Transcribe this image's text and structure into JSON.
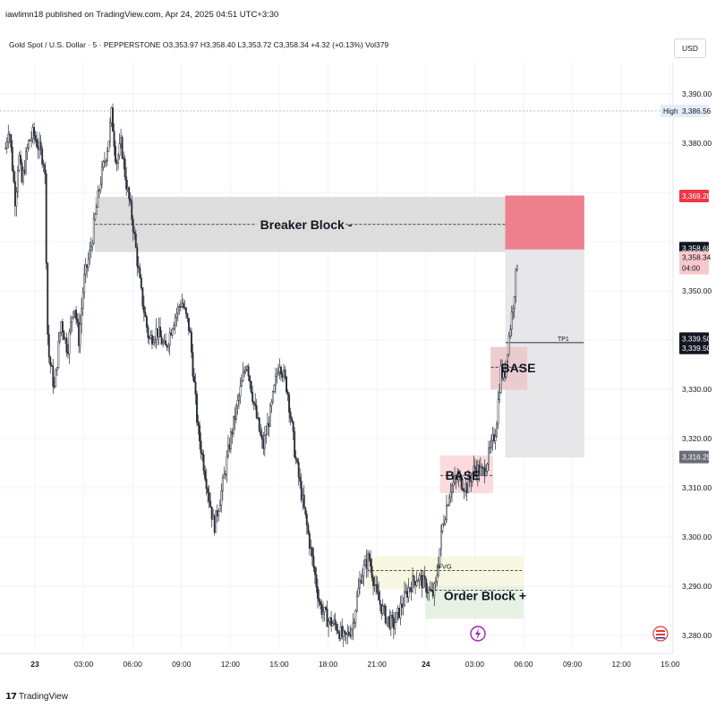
{
  "publish_line": "iawlimn18 published on TradingView.com, Apr 24, 2025 04:51 UTC+3:30",
  "symbol_line": "Gold Spot / U.S. Dollar · 5 · PEPPERSTONE  O3,353.97  H3,358.40  L3,353.72  C3,358.34  +4.32 (+0.13%)  Vol379",
  "currency_button": "USD",
  "brand": {
    "logo_text": "TradingView"
  },
  "chart_data": {
    "type": "candlestick",
    "symbol": "Gold Spot / U.S. Dollar",
    "interval": "5",
    "exchange": "PEPPERSTONE",
    "ohlc": {
      "open": 3353.97,
      "high": 3358.4,
      "low": 3353.72,
      "close": 3358.34,
      "change": 4.32,
      "change_pct": 0.13,
      "volume": 379
    },
    "y_ticks": [
      3390,
      3380,
      3350,
      3330,
      3320,
      3310,
      3300,
      3290,
      3280
    ],
    "y_tick_labels": [
      "3,390.00",
      "3,380.00",
      "3,350.00",
      "3,330.00",
      "3,320.00",
      "3,310.00",
      "3,300.00",
      "3,290.00",
      "3,280.00"
    ],
    "ylim": [
      3278,
      3393
    ],
    "x_ticks": [
      {
        "label": "23",
        "t": 0,
        "bold": true
      },
      {
        "label": "03:00",
        "t": 3
      },
      {
        "label": "06:00",
        "t": 6
      },
      {
        "label": "09:00",
        "t": 9
      },
      {
        "label": "12:00",
        "t": 12
      },
      {
        "label": "15:00",
        "t": 15
      },
      {
        "label": "18:00",
        "t": 18
      },
      {
        "label": "21:00",
        "t": 21
      },
      {
        "label": "24",
        "t": 24,
        "bold": true
      },
      {
        "label": "03:00",
        "t": 27
      },
      {
        "label": "06:00",
        "t": 30
      },
      {
        "label": "09:00",
        "t": 33
      },
      {
        "label": "12:00",
        "t": 36
      },
      {
        "label": "15:00",
        "t": 39
      }
    ],
    "price_path": [
      [
        -1.8,
        3379
      ],
      [
        -1.6,
        3384
      ],
      [
        -1.4,
        3376
      ],
      [
        -1.2,
        3368
      ],
      [
        -1.0,
        3378
      ],
      [
        -0.8,
        3372
      ],
      [
        -0.4,
        3380
      ],
      [
        -0.1,
        3382
      ],
      [
        0.6,
        3376
      ],
      [
        0.8,
        3338
      ],
      [
        1.2,
        3330
      ],
      [
        1.6,
        3344
      ],
      [
        2.0,
        3338
      ],
      [
        2.4,
        3348
      ],
      [
        2.7,
        3340
      ],
      [
        3.0,
        3352
      ],
      [
        3.4,
        3358
      ],
      [
        4.0,
        3372
      ],
      [
        4.5,
        3380
      ],
      [
        4.7,
        3386
      ],
      [
        5.0,
        3376
      ],
      [
        5.3,
        3380
      ],
      [
        5.6,
        3372
      ],
      [
        6.0,
        3364
      ],
      [
        6.5,
        3350
      ],
      [
        7.0,
        3340
      ],
      [
        7.5,
        3342
      ],
      [
        8.0,
        3338
      ],
      [
        8.5,
        3344
      ],
      [
        9.0,
        3348
      ],
      [
        9.5,
        3342
      ],
      [
        10.0,
        3322
      ],
      [
        10.5,
        3312
      ],
      [
        11.0,
        3302
      ],
      [
        11.5,
        3310
      ],
      [
        12.0,
        3320
      ],
      [
        12.5,
        3328
      ],
      [
        13.0,
        3336
      ],
      [
        13.5,
        3326
      ],
      [
        14.0,
        3318
      ],
      [
        14.5,
        3326
      ],
      [
        15.0,
        3336
      ],
      [
        15.5,
        3330
      ],
      [
        16.0,
        3316
      ],
      [
        16.5,
        3306
      ],
      [
        17.0,
        3296
      ],
      [
        17.5,
        3286
      ],
      [
        18.0,
        3283
      ],
      [
        18.5,
        3282
      ],
      [
        19.0,
        3279
      ],
      [
        19.5,
        3282
      ],
      [
        20.0,
        3292
      ],
      [
        20.5,
        3296
      ],
      [
        21.0,
        3288
      ],
      [
        21.5,
        3284
      ],
      [
        22.0,
        3282
      ],
      [
        22.5,
        3286
      ],
      [
        23.0,
        3290
      ],
      [
        23.5,
        3292
      ],
      [
        24.0,
        3290
      ],
      [
        24.4,
        3288
      ],
      [
        24.6,
        3290
      ],
      [
        25.0,
        3302
      ],
      [
        25.5,
        3310
      ],
      [
        26.0,
        3312
      ],
      [
        26.5,
        3310
      ],
      [
        27.0,
        3314
      ],
      [
        27.5,
        3313
      ],
      [
        28.0,
        3318
      ],
      [
        28.3,
        3322
      ],
      [
        28.6,
        3334
      ],
      [
        28.8,
        3332
      ],
      [
        29.0,
        3338
      ],
      [
        29.3,
        3346
      ],
      [
        29.5,
        3352
      ],
      [
        29.65,
        3358
      ]
    ],
    "zones": [
      {
        "label": "Breaker Block -",
        "top": 3369,
        "bottom": 3358,
        "t0": 3.7,
        "t1": 28.9,
        "color": "#dcdcdc",
        "line_price": 3363.5
      },
      {
        "label": "",
        "top": 3369.28,
        "bottom": 3358.34,
        "t0": 28.9,
        "t1": 33.7,
        "color": "#ec7683"
      },
      {
        "label": "",
        "top": 3358.34,
        "bottom": 3316.25,
        "t0": 28.9,
        "t1": 33.7,
        "color": "#e5e6e8"
      },
      {
        "label": "BASE",
        "top": 3338.5,
        "bottom": 3330,
        "t0": 28.0,
        "t1": 30.2,
        "color": "#ecc9cb",
        "line_price": 3334.5
      },
      {
        "label": "BASE",
        "top": 3316.5,
        "bottom": 3309,
        "t0": 24.9,
        "t1": 28.1,
        "color": "#fbd8da",
        "line_price": 3312.5
      },
      {
        "label": "IFVG",
        "top": 3296,
        "bottom": 3289.5,
        "t0": 20.4,
        "t1": 30.0,
        "color": "#f8f7e0",
        "line_price": 3293.2
      },
      {
        "label": "Order Block +",
        "top": 3290,
        "bottom": 3283.5,
        "t0": 24.0,
        "t1": 30.0,
        "color": "#e6f1e3",
        "line_price": 3289.2
      }
    ],
    "tp_line": {
      "label": "TP1",
      "price": 3339.5,
      "t0": 28.9,
      "t1": 33.7
    },
    "high_line": {
      "price": 3386.56
    },
    "price_labels": [
      {
        "text": "3,386.56",
        "price": 3386.56,
        "bg": "#e3ecf7",
        "fg": "#131722",
        "prefix": "High"
      },
      {
        "text": "3,369.28",
        "price": 3369.28,
        "bg": "#f23645",
        "fg": "#ffffff"
      },
      {
        "text": "3,358.68",
        "price": 3358.68,
        "bg": "#131722",
        "fg": "#ffffff"
      },
      {
        "text": "3,358.34",
        "price": 3356.8,
        "bg": "#f7c9cd",
        "fg": "#131722",
        "sub": "04:00"
      },
      {
        "text": "3,339.50",
        "price": 3340.3,
        "bg": "#131722",
        "fg": "#ffffff"
      },
      {
        "text": "3,339.50",
        "price": 3338.4,
        "bg": "#131722",
        "fg": "#ffffff"
      },
      {
        "text": "3,316.25",
        "price": 3316.25,
        "bg": "#6a6d78",
        "fg": "#ffffff"
      }
    ]
  }
}
